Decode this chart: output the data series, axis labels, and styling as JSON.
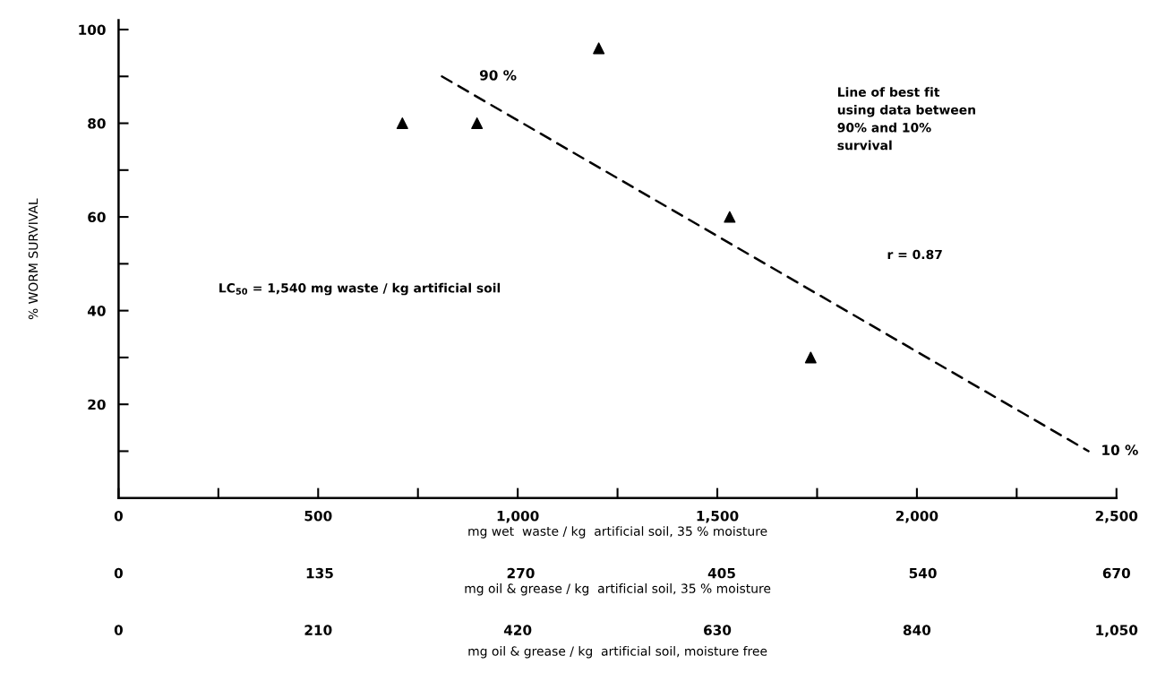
{
  "chart_data": {
    "type": "scatter",
    "xlabel": "mg wet  waste / kg  artificial soil, 35 % moisture",
    "ylabel": "% WORM SURVIVAL",
    "x2label": "mg oil & grease / kg  artificial soil, 35 % moisture",
    "series": [
      {
        "x": [
          711,
          898,
          1203,
          1531,
          1734
        ],
        "values": [
          80,
          80,
          96,
          60,
          30
        ],
        "color": "#000000",
        "marker": "triangle"
      },
      {
        "type": "line",
        "x": [
          810,
          2430
        ],
        "values": [
          90,
          10
        ],
        "color": "#000000",
        "line_style": "dashed",
        "marker": "none"
      }
    ],
    "xlim": [
      0,
      2500
    ],
    "ylim": [
      0,
      102
    ],
    "xticks": [
      0,
      {
        "value": 250,
        "label": null
      },
      500,
      {
        "value": 750,
        "label": null
      },
      {
        "value": 1000,
        "label": "1,000"
      },
      {
        "value": 1250,
        "label": null
      },
      {
        "value": 1500,
        "label": "1,500"
      },
      {
        "value": 1750,
        "label": null
      },
      {
        "value": 2000,
        "label": "2,000"
      },
      {
        "value": 2250,
        "label": null
      },
      {
        "value": 2500,
        "label": "2,500"
      }
    ],
    "yticks": [
      {
        "value": 10,
        "label": null
      },
      20,
      {
        "value": 30,
        "label": null
      },
      40,
      {
        "value": 50,
        "label": null
      },
      60,
      {
        "value": 70,
        "label": null
      },
      80,
      {
        "value": 90,
        "label": null
      },
      100
    ],
    "x2lim": [
      0,
      670
    ],
    "x2ticks": [
      0,
      135,
      270,
      405,
      540,
      670
    ],
    "grid": false,
    "legend": false,
    "annotations": [
      {
        "text": "90 %",
        "x": 810,
        "y": 90
      },
      {
        "text": "10 %",
        "x": 2430,
        "y": 10
      },
      "Line of best fit\nusing data between\n90% and 10%\nsurvival",
      "r = 0.87",
      "LC$_{50}$ = 1,540 mg waste / kg artificial soil",
      "0",
      "210",
      "420",
      "630",
      "840",
      "1,050",
      "mg oil & grease / kg  artificial soil, moisture free"
    ]
  }
}
